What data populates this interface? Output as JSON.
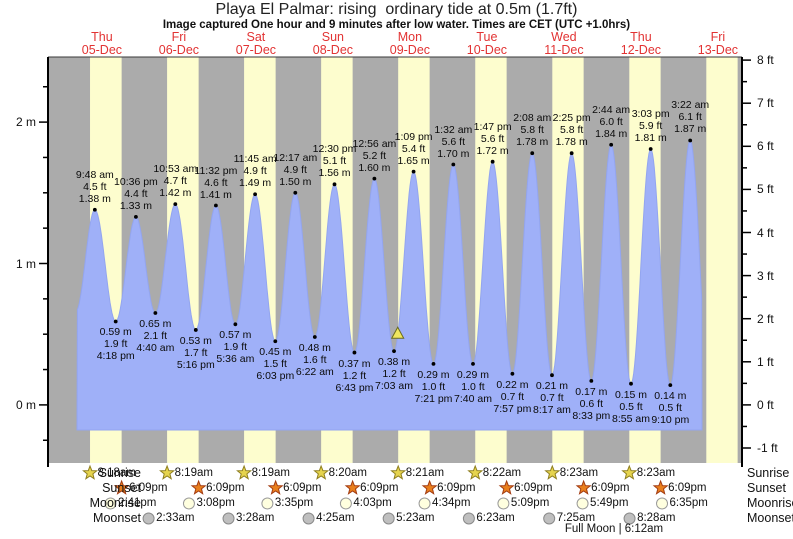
{
  "title": "Playa El Palmar: rising  ordinary tide at 0.5m (1.7ft)",
  "subtitle": "Image captured One hour and 9 minutes after low water. Times are CET (UTC +1.0hrs)",
  "chart_data": {
    "type": "area",
    "title": "Playa El Palmar: rising  ordinary tide at 0.5m (1.7ft)",
    "x_days": [
      {
        "dow": "Thu",
        "date": "05-Dec"
      },
      {
        "dow": "Fri",
        "date": "06-Dec"
      },
      {
        "dow": "Sat",
        "date": "07-Dec"
      },
      {
        "dow": "Sun",
        "date": "08-Dec"
      },
      {
        "dow": "Mon",
        "date": "09-Dec"
      },
      {
        "dow": "Tue",
        "date": "10-Dec"
      },
      {
        "dow": "Wed",
        "date": "11-Dec"
      },
      {
        "dow": "Thu",
        "date": "12-Dec"
      },
      {
        "dow": "Fri",
        "date": "13-Dec"
      }
    ],
    "y_axis_left": {
      "unit": "m",
      "ticks": [
        0,
        1,
        2
      ],
      "minor_step": 0.25
    },
    "y_axis_right": {
      "unit": "ft",
      "ticks": [
        -1,
        0,
        1,
        2,
        3,
        4,
        5,
        6,
        7,
        8
      ],
      "minor_step": 0.5
    },
    "tide_events": [
      {
        "type": "high",
        "day": 0,
        "time": "9:48 am",
        "ft": 4.5,
        "m": 1.38
      },
      {
        "type": "low",
        "day": 0,
        "time": "4:18 pm",
        "ft": 1.9,
        "m": 0.59
      },
      {
        "type": "high",
        "day": 0,
        "time": "10:36 pm",
        "ft": 4.4,
        "m": 1.33
      },
      {
        "type": "low",
        "day": 1,
        "time": "4:40 am",
        "ft": 2.1,
        "m": 0.65
      },
      {
        "type": "high",
        "day": 1,
        "time": "10:53 am",
        "ft": 4.7,
        "m": 1.42
      },
      {
        "type": "low",
        "day": 1,
        "time": "5:16 pm",
        "ft": 1.7,
        "m": 0.53
      },
      {
        "type": "high",
        "day": 1,
        "time": "11:32 pm",
        "ft": 4.6,
        "m": 1.41
      },
      {
        "type": "low",
        "day": 2,
        "time": "5:36 am",
        "ft": 1.9,
        "m": 0.57
      },
      {
        "type": "high",
        "day": 2,
        "time": "11:45 am",
        "ft": 4.9,
        "m": 1.49
      },
      {
        "type": "low",
        "day": 2,
        "time": "6:03 pm",
        "ft": 1.5,
        "m": 0.45
      },
      {
        "type": "high",
        "day": 3,
        "time": "12:17 am",
        "ft": 4.9,
        "m": 1.5
      },
      {
        "type": "low",
        "day": 3,
        "time": "6:22 am",
        "ft": 1.6,
        "m": 0.48
      },
      {
        "type": "high",
        "day": 3,
        "time": "12:30 pm",
        "ft": 5.1,
        "m": 1.56
      },
      {
        "type": "low",
        "day": 3,
        "time": "6:43 pm",
        "ft": 1.2,
        "m": 0.37
      },
      {
        "type": "high",
        "day": 4,
        "time": "12:56 am",
        "ft": 5.2,
        "m": 1.6
      },
      {
        "type": "low",
        "day": 4,
        "time": "7:03 am",
        "ft": 1.2,
        "m": 0.38
      },
      {
        "type": "high",
        "day": 4,
        "time": "1:09 pm",
        "ft": 5.4,
        "m": 1.65
      },
      {
        "type": "low",
        "day": 4,
        "time": "7:21 pm",
        "ft": 1.0,
        "m": 0.29
      },
      {
        "type": "high",
        "day": 5,
        "time": "1:32 am",
        "ft": 5.6,
        "m": 1.7
      },
      {
        "type": "low",
        "day": 5,
        "time": "7:40 am",
        "ft": 1.0,
        "m": 0.29
      },
      {
        "type": "high",
        "day": 5,
        "time": "1:47 pm",
        "ft": 5.6,
        "m": 1.72
      },
      {
        "type": "low",
        "day": 5,
        "time": "7:57 pm",
        "ft": 0.7,
        "m": 0.22
      },
      {
        "type": "high",
        "day": 6,
        "time": "2:08 am",
        "ft": 5.8,
        "m": 1.78
      },
      {
        "type": "low",
        "day": 6,
        "time": "8:17 am",
        "ft": 0.7,
        "m": 0.21
      },
      {
        "type": "high",
        "day": 6,
        "time": "2:25 pm",
        "ft": 5.8,
        "m": 1.78
      },
      {
        "type": "low",
        "day": 6,
        "time": "8:33 pm",
        "ft": 0.6,
        "m": 0.17
      },
      {
        "type": "high",
        "day": 7,
        "time": "2:44 am",
        "ft": 6.0,
        "m": 1.84
      },
      {
        "type": "low",
        "day": 7,
        "time": "8:55 am",
        "ft": 0.5,
        "m": 0.15
      },
      {
        "type": "high",
        "day": 7,
        "time": "3:03 pm",
        "ft": 5.9,
        "m": 1.81
      },
      {
        "type": "low",
        "day": 7,
        "time": "9:10 pm",
        "ft": 0.5,
        "m": 0.14
      },
      {
        "type": "high",
        "day": 8,
        "time": "3:22 am",
        "ft": 6.1,
        "m": 1.87
      }
    ],
    "current_marker": {
      "day": 4,
      "time": "8:12 am",
      "height_m": 0.5
    },
    "colors": {
      "water": "#9fb0f8",
      "day_band": "#fdfdce",
      "night_band": "#ababab",
      "day_label_red": "#e23333",
      "marker_yellow": "#efe65e"
    }
  },
  "almanac": {
    "rows": [
      {
        "label": "Sunrise",
        "icon": "sunrise-star-icon",
        "events": [
          {
            "day": 0,
            "time": "8:18am"
          },
          {
            "day": 1,
            "time": "8:19am"
          },
          {
            "day": 2,
            "time": "8:19am"
          },
          {
            "day": 3,
            "time": "8:20am"
          },
          {
            "day": 4,
            "time": "8:21am"
          },
          {
            "day": 5,
            "time": "8:22am"
          },
          {
            "day": 6,
            "time": "8:23am"
          },
          {
            "day": 7,
            "time": "8:23am"
          }
        ]
      },
      {
        "label": "Sunset",
        "icon": "sunset-star-icon",
        "events": [
          {
            "day": 0,
            "time": "6:09pm"
          },
          {
            "day": 1,
            "time": "6:09pm"
          },
          {
            "day": 2,
            "time": "6:09pm"
          },
          {
            "day": 3,
            "time": "6:09pm"
          },
          {
            "day": 4,
            "time": "6:09pm"
          },
          {
            "day": 5,
            "time": "6:09pm"
          },
          {
            "day": 6,
            "time": "6:09pm"
          },
          {
            "day": 7,
            "time": "6:09pm"
          }
        ]
      },
      {
        "label": "Moonrise",
        "icon": "moonrise-circle-icon",
        "events": [
          {
            "day": 0,
            "time": "2:41pm"
          },
          {
            "day": 1,
            "time": "3:08pm"
          },
          {
            "day": 2,
            "time": "3:35pm"
          },
          {
            "day": 3,
            "time": "4:03pm"
          },
          {
            "day": 4,
            "time": "4:34pm"
          },
          {
            "day": 5,
            "time": "5:09pm"
          },
          {
            "day": 6,
            "time": "5:49pm"
          },
          {
            "day": 7,
            "time": "6:35pm"
          }
        ]
      },
      {
        "label": "Moonset",
        "icon": "moonset-circle-icon",
        "events": [
          {
            "day": 1,
            "time": "2:33am"
          },
          {
            "day": 2,
            "time": "3:28am"
          },
          {
            "day": 3,
            "time": "4:25am"
          },
          {
            "day": 4,
            "time": "5:23am"
          },
          {
            "day": 5,
            "time": "6:23am"
          },
          {
            "day": 6,
            "time": "7:25am"
          },
          {
            "day": 7,
            "time": "8:28am"
          }
        ]
      }
    ],
    "footer": "Full Moon | 6:12am"
  }
}
